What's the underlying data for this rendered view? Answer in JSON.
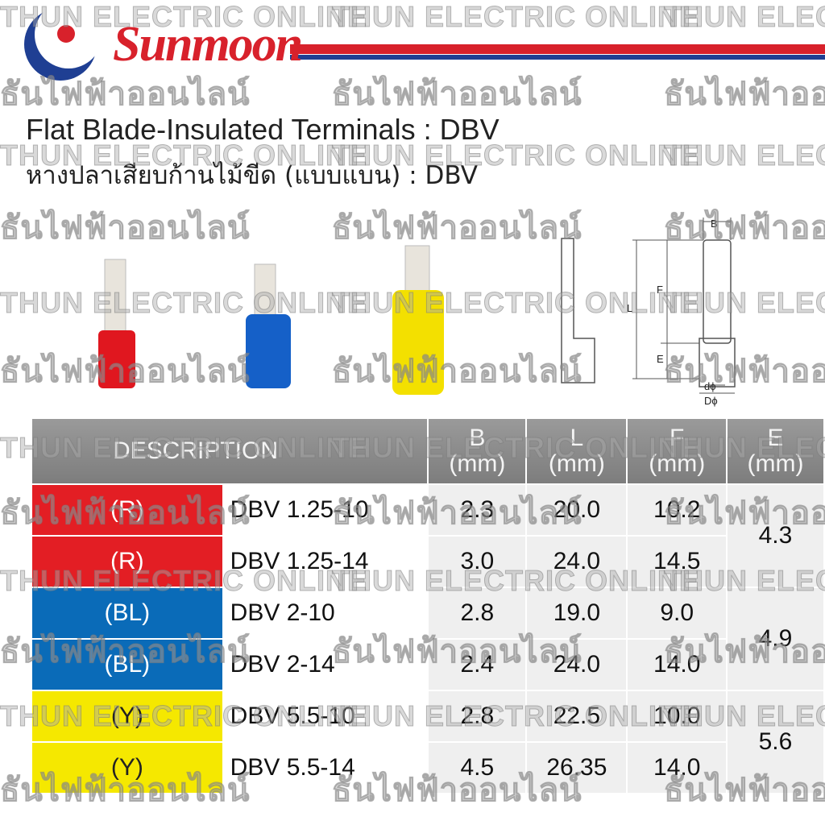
{
  "header": {
    "brand": "Sunmoon",
    "title": "Flat Blade-Insulated Terminals : DBV",
    "subtitle": "หางปลาเสียบก้านไม้ขีด (แบบแบน) : DBV"
  },
  "watermark": {
    "en": "THUN ELECTRIC ONLINE",
    "th": "ธันไฟฟ้าออนไลน์"
  },
  "diagram": {
    "labels": [
      "B",
      "F",
      "L",
      "E",
      "dϕ",
      "Dϕ"
    ]
  },
  "table": {
    "columns": [
      {
        "name": "DESCRIPTION"
      },
      {
        "name": "B",
        "unit": "(mm)"
      },
      {
        "name": "L",
        "unit": "(mm)"
      },
      {
        "name": "F",
        "unit": "(mm)"
      },
      {
        "name": "E",
        "unit": "(mm)"
      }
    ],
    "rows": [
      {
        "color": "(R)",
        "model": "DBV 1.25-10",
        "B": "2.3",
        "L": "20.0",
        "F": "10.2"
      },
      {
        "color": "(R)",
        "model": "DBV 1.25-14",
        "B": "3.0",
        "L": "24.0",
        "F": "14.5"
      },
      {
        "color": "(BL)",
        "model": "DBV 2-10",
        "B": "2.8",
        "L": "19.0",
        "F": "9.0"
      },
      {
        "color": "(BL)",
        "model": "DBV 2-14",
        "B": "2.4",
        "L": "24.0",
        "F": "14.0"
      },
      {
        "color": "(Y)",
        "model": "DBV 5.5-10",
        "B": "2.8",
        "L": "22.5",
        "F": "10.0"
      },
      {
        "color": "(Y)",
        "model": "DBV 5.5-14",
        "B": "4.5",
        "L": "26.35",
        "F": "14.0"
      }
    ],
    "E": [
      "4.3",
      "4.9",
      "5.6"
    ]
  }
}
